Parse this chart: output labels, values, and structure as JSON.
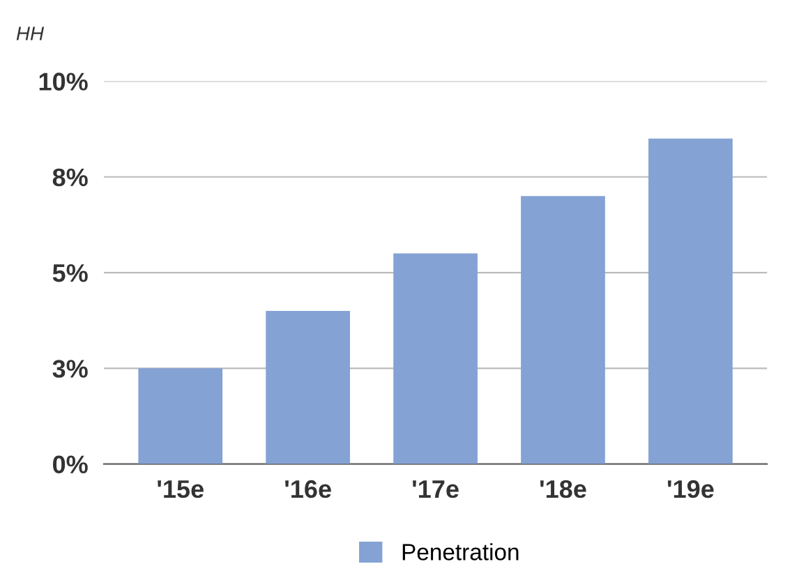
{
  "chart_data": {
    "type": "bar",
    "ylabel": "HH",
    "categories": [
      "'15e",
      "'16e",
      "'17e",
      "'18e",
      "'19e"
    ],
    "series": [
      {
        "name": "Penetration",
        "color": "#84a2d4",
        "values": [
          2.5,
          4.0,
          5.5,
          7.0,
          8.5
        ]
      }
    ],
    "ylim": [
      0,
      10
    ],
    "yticks": [
      {
        "value": 0,
        "label": "0%"
      },
      {
        "value": 2.5,
        "label": "3%"
      },
      {
        "value": 5,
        "label": "5%"
      },
      {
        "value": 7.5,
        "label": "8%"
      },
      {
        "value": 10,
        "label": "10%"
      }
    ],
    "grid": "y",
    "legend": "bottom"
  }
}
